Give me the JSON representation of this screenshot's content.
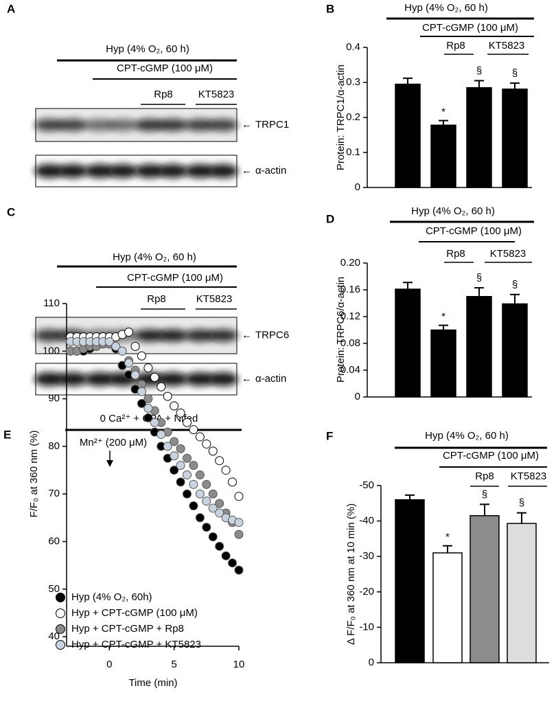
{
  "panel_labels": [
    "A",
    "B",
    "C",
    "D",
    "E",
    "F"
  ],
  "blots": [
    {
      "treatments": [
        "Hyp (4% O₂, 60 h)",
        "CPT-cGMP (100 μM)",
        "Rp8",
        "KT5823"
      ],
      "bands": [
        "TRPC1",
        "α-actin"
      ]
    },
    {
      "treatments": [
        "Hyp (4% O₂, 60 h)",
        "CPT-cGMP (100 μM)",
        "Rp8",
        "KT5823"
      ],
      "bands": [
        "TRPC6",
        "α-actin"
      ]
    }
  ],
  "chart_data": [
    {
      "type": "bar",
      "ylabel": "Protein: TRPC1/α-actin",
      "treatments": [
        "Hyp (4% O₂, 60 h)",
        "CPT-cGMP (100 μM)",
        "Rp8",
        "KT5823"
      ],
      "values": [
        0.295,
        0.178,
        0.285,
        0.281
      ],
      "errors": [
        0.017,
        0.013,
        0.02,
        0.017
      ],
      "marks": [
        null,
        "*",
        "§",
        "§"
      ],
      "colors": [
        "#000000",
        "#000000",
        "#000000",
        "#000000"
      ],
      "ylim": [
        0,
        0.4
      ],
      "yticks": [
        0,
        0.1,
        0.2,
        0.3,
        0.4
      ]
    },
    {
      "type": "bar",
      "ylabel": "Protein: TRPC6/α-actin",
      "treatments": [
        "Hyp (4% O₂, 60 h)",
        "CPT-cGMP (100 μM)",
        "Rp8",
        "KT5823"
      ],
      "values": [
        0.161,
        0.1,
        0.15,
        0.139
      ],
      "errors": [
        0.01,
        0.007,
        0.013,
        0.014
      ],
      "marks": [
        null,
        "*",
        "§",
        "§"
      ],
      "colors": [
        "#000000",
        "#000000",
        "#000000",
        "#000000"
      ],
      "ylim": [
        0,
        0.2
      ],
      "yticks": [
        0,
        0.04,
        0.08,
        0.12,
        0.16,
        {
          "value": 0.2,
          "label": "0.20"
        }
      ]
    },
    {
      "type": "scatter",
      "header": "0 Ca²⁺ + CPA + Nifed",
      "annotation": "Mn²⁺ (200 μM)",
      "xlabel": "Time (min)",
      "ylabel": "F/F₀ at 360 nm (%)",
      "x": [
        -3,
        -2.5,
        -2,
        -1.5,
        -1,
        -0.5,
        0,
        0.5,
        1,
        1.5,
        2,
        2.5,
        3,
        3.5,
        4,
        4.5,
        5,
        5.5,
        6,
        6.5,
        7,
        7.5,
        8,
        8.5,
        9,
        9.5,
        10
      ],
      "series": [
        {
          "name": "Hyp (4% O₂, 60h)",
          "color": "#000000",
          "values": [
            100,
            100,
            100,
            100.5,
            101,
            101.5,
            101.5,
            100.5,
            97,
            95,
            92,
            89,
            86,
            83,
            80,
            77.5,
            75,
            72.5,
            70,
            67.5,
            65,
            63,
            61,
            59,
            57,
            55.5,
            54
          ]
        },
        {
          "name": "Hyp + CPT-cGMP (100 μM)",
          "color": "#ffffff",
          "values": [
            103,
            103,
            103,
            103,
            103,
            103,
            103,
            103,
            103.5,
            104,
            101,
            99,
            96.5,
            94.5,
            92.5,
            90.5,
            88.5,
            87,
            85,
            83.5,
            82,
            80.5,
            79,
            77,
            75,
            72.5,
            69.5
          ]
        },
        {
          "name": "Hyp + CPT-cGMP + Rp8",
          "color": "#8c8c8c",
          "values": [
            100,
            100,
            100.5,
            101,
            101,
            101.5,
            101.5,
            101,
            100,
            98,
            96,
            93,
            90,
            87.5,
            85,
            83,
            81,
            79.5,
            77.5,
            76,
            74,
            72,
            70,
            68,
            66,
            64,
            61.5
          ]
        },
        {
          "name": "Hyp + CPT-cGMP + KT5823",
          "color": "#c9d3e0",
          "values": [
            102,
            102,
            102,
            102,
            102,
            102,
            102,
            101,
            100,
            97.5,
            95,
            91.5,
            88,
            85,
            82.5,
            80,
            78,
            76,
            74,
            72,
            70,
            68.5,
            67,
            66,
            65,
            64.5,
            64
          ]
        }
      ],
      "xlim": [
        -3.3,
        10
      ],
      "xticks": [
        0,
        5,
        10
      ],
      "ylim": [
        38,
        110
      ],
      "yticks": [
        40,
        50,
        60,
        70,
        80,
        90,
        100,
        110
      ]
    },
    {
      "type": "bar",
      "ylabel": "Δ F/F₀ at 360 nm at 10 min (%)",
      "treatments": [
        "Hyp (4% O₂, 60 h)",
        "CPT-cGMP (100 μM)",
        "Rp8",
        "KT5823"
      ],
      "values": [
        -46,
        -31,
        -41.5,
        -39.3
      ],
      "errors": [
        1.3,
        2,
        3.2,
        3
      ],
      "marks": [
        null,
        "*",
        "§",
        "§"
      ],
      "colors": [
        "#000000",
        "#ffffff",
        "#8c8c8c",
        "#dddddd"
      ],
      "ylim": [
        0,
        -50
      ],
      "yticks": [
        0,
        -10,
        -20,
        -30,
        -40,
        -50
      ]
    }
  ]
}
